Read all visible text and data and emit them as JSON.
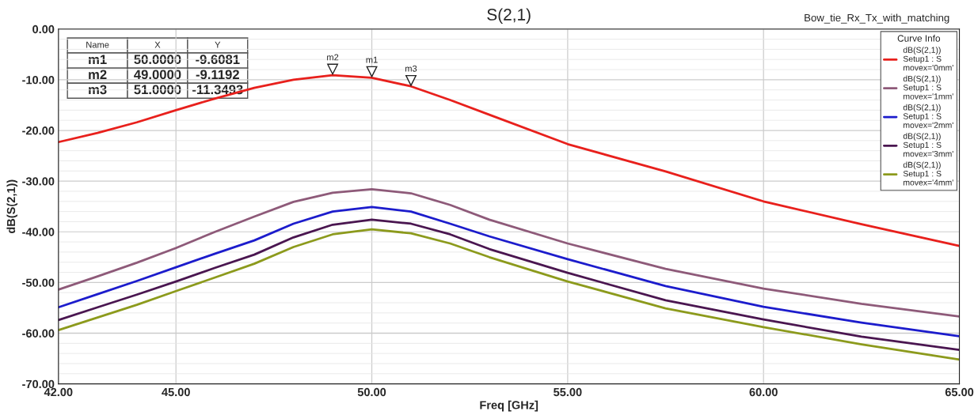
{
  "chart_data": {
    "type": "line",
    "title": "S(2,1)",
    "subtitle": "Bow_tie_Rx_Tx_with_matching",
    "xlabel": "Freq [GHz]",
    "ylabel": "dB(S(2,1))",
    "legend_title": "Curve Info",
    "x": [
      42,
      43,
      44,
      45,
      46,
      47,
      48,
      49,
      50,
      51,
      52,
      53,
      55,
      57.5,
      60,
      62.5,
      65
    ],
    "series": [
      {
        "name": "dB(S(2,1))\nSetup1 : S\nmovex='0mm'",
        "color": "#e8201c",
        "values": [
          -22.3,
          -20.5,
          -18.4,
          -16.0,
          -13.7,
          -11.6,
          -10.0,
          -9.1,
          -9.6,
          -11.3,
          -14.0,
          -16.9,
          -22.7,
          -28.1,
          -34.0,
          -38.5,
          -42.8
        ]
      },
      {
        "name": "dB(S(2,1))\nSetup1 : S\nmovex='1mm'",
        "color": "#8e5a79",
        "values": [
          -51.4,
          -48.8,
          -46.1,
          -43.2,
          -40.0,
          -37.0,
          -34.1,
          -32.3,
          -31.6,
          -32.4,
          -34.7,
          -37.6,
          -42.3,
          -47.3,
          -51.2,
          -54.2,
          -56.7
        ]
      },
      {
        "name": "dB(S(2,1))\nSetup1 : S\nmovex='2mm'",
        "color": "#1c1ccc",
        "values": [
          -54.9,
          -52.3,
          -49.7,
          -47.0,
          -44.3,
          -41.7,
          -38.4,
          -36.0,
          -35.1,
          -36.0,
          -38.4,
          -40.9,
          -45.4,
          -50.7,
          -54.8,
          -57.9,
          -60.6
        ]
      },
      {
        "name": "dB(S(2,1))\nSetup1 : S\nmovex='3mm'",
        "color": "#4a1650",
        "values": [
          -57.4,
          -54.9,
          -52.4,
          -49.8,
          -47.1,
          -44.5,
          -41.1,
          -38.6,
          -37.6,
          -38.4,
          -40.5,
          -43.4,
          -48.1,
          -53.5,
          -57.3,
          -60.7,
          -63.3
        ]
      },
      {
        "name": "dB(S(2,1))\nSetup1 : S\nmovex='4mm'",
        "color": "#8c9a1c",
        "values": [
          -59.4,
          -56.9,
          -54.4,
          -51.7,
          -49.0,
          -46.3,
          -43.0,
          -40.5,
          -39.5,
          -40.3,
          -42.3,
          -45.0,
          -49.8,
          -55.1,
          -58.8,
          -62.2,
          -65.2
        ]
      }
    ],
    "annotations": [
      {
        "text": "m1",
        "x": 50,
        "y": -9.6081
      },
      {
        "text": "m2",
        "x": 49,
        "y": -9.1192
      },
      {
        "text": "m3",
        "x": 51,
        "y": -11.3493
      },
      "Name",
      "X",
      "Y",
      "m1",
      "50.0000",
      "-9.6081",
      "m2",
      "49.0000",
      "-9.1192",
      "m3",
      "51.0000",
      "-11.3493"
    ],
    "xlim": [
      42,
      65
    ],
    "ylim": [
      -70,
      0
    ],
    "xticks": [
      {
        "value": 42,
        "label": "42.00"
      },
      {
        "value": 45,
        "label": "45.00"
      },
      {
        "value": 50,
        "label": "50.00"
      },
      {
        "value": 55,
        "label": "55.00"
      },
      {
        "value": 60,
        "label": "60.00"
      },
      {
        "value": 65,
        "label": "65.00"
      }
    ],
    "yticks": [
      {
        "value": -70,
        "label": "-70.00"
      },
      {
        "value": -60,
        "label": "-60.00"
      },
      {
        "value": -50,
        "label": "-50.00"
      },
      {
        "value": -40,
        "label": "-40.00"
      },
      {
        "value": -30,
        "label": "-30.00"
      },
      {
        "value": -20,
        "label": "-20.00"
      },
      {
        "value": -10,
        "label": "-10.00"
      },
      {
        "value": 0,
        "label": "0.00"
      }
    ],
    "grid": true,
    "legend": "top right",
    "marker": "none",
    "line_style": "solid"
  }
}
